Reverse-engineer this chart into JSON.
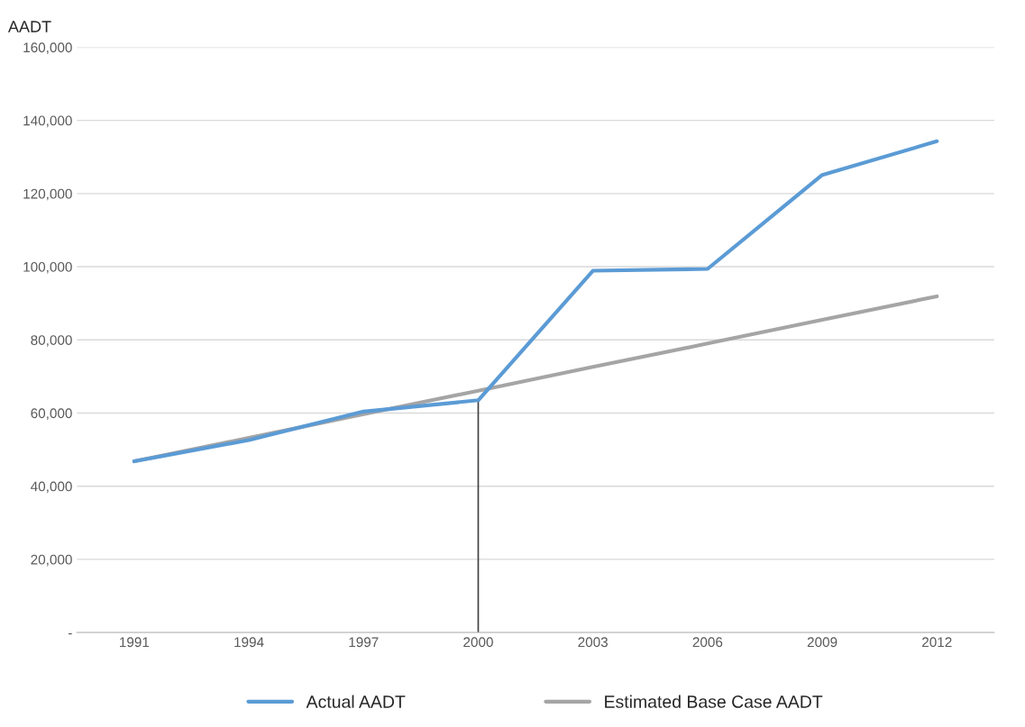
{
  "chart_data": {
    "type": "line",
    "ylabel": "AADT",
    "categories": [
      "1991",
      "1994",
      "1997",
      "2000",
      "2003",
      "2006",
      "2009",
      "2012"
    ],
    "series": [
      {
        "name": "Actual AADT",
        "color": "#5b9bd5",
        "values": [
          46800,
          52600,
          60400,
          63500,
          98900,
          99400,
          125100,
          134300
        ]
      },
      {
        "name": "Estimated Base Case AADT",
        "color": "#a5a5a5",
        "values": [
          46800,
          53200,
          59700,
          66100,
          72600,
          79000,
          85500,
          91900
        ]
      }
    ],
    "ylim": [
      0,
      160000
    ],
    "yticks": [
      {
        "value": 0,
        "label": "-"
      },
      {
        "value": 20000,
        "label": "20,000"
      },
      {
        "value": 40000,
        "label": "40,000"
      },
      {
        "value": 60000,
        "label": "60,000"
      },
      {
        "value": 80000,
        "label": "80,000"
      },
      {
        "value": 100000,
        "label": "100,000"
      },
      {
        "value": 120000,
        "label": "120,000"
      },
      {
        "value": 140000,
        "label": "140,000"
      },
      {
        "value": 160000,
        "label": "160,000"
      }
    ],
    "ref_lines": [
      {
        "axis": "x",
        "value": "2000",
        "color": "#404040"
      }
    ],
    "grid": "y",
    "legend": "bottom",
    "marker": "none",
    "line_style": "solid"
  }
}
